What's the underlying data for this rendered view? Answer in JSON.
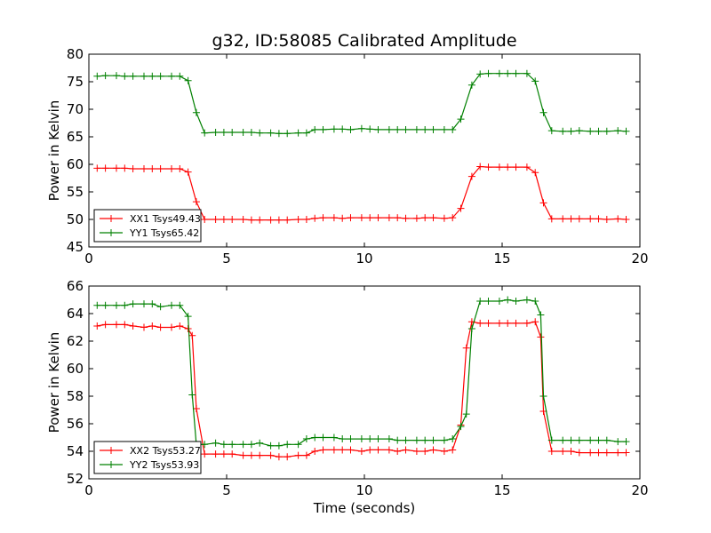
{
  "title": "g32, ID:58085 Calibrated Amplitude",
  "colors": {
    "red": "#ff0000",
    "green": "#008000"
  },
  "chart_data": [
    {
      "type": "line",
      "ylabel": "Power in Kelvin",
      "xlabel": "",
      "xlim": [
        0,
        20
      ],
      "ylim": [
        45,
        80
      ],
      "xticks": [
        0,
        5,
        10,
        15,
        20
      ],
      "yticks": [
        45,
        50,
        55,
        60,
        65,
        70,
        75,
        80
      ],
      "grid": false,
      "legend_position": "lower-left",
      "x": [
        0.3,
        0.6,
        1.0,
        1.3,
        1.6,
        2.0,
        2.3,
        2.6,
        3.0,
        3.3,
        3.6,
        3.9,
        4.2,
        4.6,
        4.9,
        5.2,
        5.6,
        5.9,
        6.2,
        6.6,
        6.9,
        7.2,
        7.6,
        7.9,
        8.2,
        8.5,
        8.9,
        9.2,
        9.5,
        9.9,
        10.2,
        10.5,
        10.9,
        11.2,
        11.5,
        11.9,
        12.2,
        12.5,
        12.9,
        13.2,
        13.5,
        13.9,
        14.2,
        14.5,
        14.9,
        15.2,
        15.5,
        15.9,
        16.2,
        16.5,
        16.8,
        17.2,
        17.5,
        17.8,
        18.2,
        18.5,
        18.8,
        19.2,
        19.5
      ],
      "series": [
        {
          "name": "XX1 Tsys49.43",
          "color": "#ff0000",
          "values": [
            59.3,
            59.3,
            59.3,
            59.3,
            59.2,
            59.2,
            59.2,
            59.2,
            59.2,
            59.2,
            58.6,
            53.2,
            50.0,
            50.0,
            50.0,
            50.0,
            50.0,
            49.9,
            49.9,
            49.9,
            49.9,
            49.9,
            50.0,
            50.0,
            50.2,
            50.3,
            50.3,
            50.2,
            50.3,
            50.3,
            50.3,
            50.3,
            50.3,
            50.3,
            50.2,
            50.2,
            50.3,
            50.3,
            50.2,
            50.3,
            52.0,
            57.8,
            59.6,
            59.5,
            59.5,
            59.5,
            59.5,
            59.5,
            58.5,
            53.0,
            50.1,
            50.1,
            50.1,
            50.1,
            50.1,
            50.1,
            50.0,
            50.1,
            50.0
          ]
        },
        {
          "name": "YY1 Tsys65.42",
          "color": "#008000",
          "values": [
            76.0,
            76.1,
            76.1,
            76.0,
            76.0,
            76.0,
            76.0,
            76.0,
            76.0,
            76.0,
            75.2,
            69.4,
            65.7,
            65.8,
            65.8,
            65.8,
            65.8,
            65.8,
            65.7,
            65.7,
            65.6,
            65.6,
            65.7,
            65.7,
            66.3,
            66.3,
            66.4,
            66.4,
            66.3,
            66.5,
            66.4,
            66.3,
            66.3,
            66.3,
            66.3,
            66.3,
            66.3,
            66.3,
            66.3,
            66.3,
            68.2,
            74.4,
            76.4,
            76.5,
            76.5,
            76.5,
            76.5,
            76.5,
            75.1,
            69.4,
            66.1,
            66.0,
            66.0,
            66.1,
            66.0,
            66.0,
            66.0,
            66.1,
            66.0
          ]
        }
      ]
    },
    {
      "type": "line",
      "ylabel": "Power in Kelvin",
      "xlabel": "Time (seconds)",
      "xlim": [
        0,
        20
      ],
      "ylim": [
        52,
        66
      ],
      "xticks": [
        0,
        5,
        10,
        15,
        20
      ],
      "yticks": [
        52,
        54,
        56,
        58,
        60,
        62,
        64,
        66
      ],
      "grid": false,
      "legend_position": "lower-left",
      "x": [
        0.3,
        0.6,
        1.0,
        1.3,
        1.6,
        2.0,
        2.3,
        2.6,
        3.0,
        3.3,
        3.6,
        3.75,
        3.9,
        4.2,
        4.6,
        4.9,
        5.2,
        5.6,
        5.9,
        6.2,
        6.6,
        6.9,
        7.2,
        7.6,
        7.9,
        8.2,
        8.5,
        8.9,
        9.2,
        9.5,
        9.9,
        10.2,
        10.5,
        10.9,
        11.2,
        11.5,
        11.9,
        12.2,
        12.5,
        12.9,
        13.2,
        13.5,
        13.7,
        13.9,
        14.2,
        14.5,
        14.9,
        15.2,
        15.5,
        15.9,
        16.2,
        16.4,
        16.5,
        16.8,
        17.2,
        17.5,
        17.8,
        18.2,
        18.5,
        18.8,
        19.2,
        19.5
      ],
      "series": [
        {
          "name": "XX2 Tsys53.27",
          "color": "#ff0000",
          "values": [
            63.1,
            63.2,
            63.2,
            63.2,
            63.1,
            63.0,
            63.1,
            63.0,
            63.0,
            63.1,
            62.9,
            62.4,
            57.1,
            53.8,
            53.8,
            53.8,
            53.8,
            53.7,
            53.7,
            53.7,
            53.7,
            53.6,
            53.6,
            53.7,
            53.7,
            54.0,
            54.1,
            54.1,
            54.1,
            54.1,
            54.0,
            54.1,
            54.1,
            54.1,
            54.0,
            54.1,
            54.0,
            54.0,
            54.1,
            54.0,
            54.1,
            55.9,
            61.5,
            63.4,
            63.3,
            63.3,
            63.3,
            63.3,
            63.3,
            63.3,
            63.4,
            62.3,
            56.9,
            54.0,
            54.0,
            54.0,
            53.9,
            53.9,
            53.9,
            53.9,
            53.9,
            53.9
          ],
          "note_dummy": null
        },
        {
          "name": "YY2 Tsys53.93",
          "color": "#008000",
          "values": [
            64.6,
            64.6,
            64.6,
            64.6,
            64.7,
            64.7,
            64.7,
            64.5,
            64.6,
            64.6,
            63.8,
            58.1,
            54.5,
            54.5,
            54.6,
            54.5,
            54.5,
            54.5,
            54.5,
            54.6,
            54.4,
            54.4,
            54.5,
            54.5,
            54.9,
            55.0,
            55.0,
            55.0,
            54.9,
            54.9,
            54.9,
            54.9,
            54.9,
            54.9,
            54.8,
            54.8,
            54.8,
            54.8,
            54.8,
            54.8,
            54.9,
            55.8,
            56.7,
            62.9,
            64.9,
            64.9,
            64.9,
            65.0,
            64.9,
            65.0,
            64.9,
            63.9,
            58.0,
            54.8,
            54.8,
            54.8,
            54.8,
            54.8,
            54.8,
            54.8,
            54.7,
            54.7
          ]
        }
      ]
    }
  ]
}
